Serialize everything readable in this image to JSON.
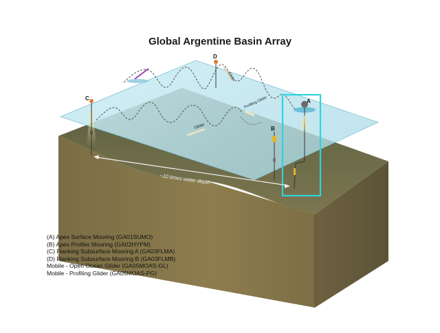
{
  "title": "Global Argentine Basin Array",
  "site_labels": {
    "a": "A",
    "b": "B",
    "c": "C",
    "d": "D"
  },
  "annotations": {
    "distance": "~10 times water depth",
    "glider": "Glider",
    "glider_surface": "Glider",
    "profiling_glider": "Profiling Glider"
  },
  "legend": [
    "(A) Apex Surface Mooring (GA01SUMO)",
    "(B) Apex Profiler Mooring (GA02HYPM)",
    "(C) Flanking Subsurface Mooring A (GA03FLMA)",
    "(D) Flanking Subsurface Mooring B (GA03FLMB)",
    "Mobile - Open Ocean Glider (GA05MOAS-GL)",
    "Mobile - Profiling Glider (GA05MOAS-PG)"
  ],
  "colors": {
    "water_surface": "#bfe3ec",
    "seafloor_top": "#67684a",
    "block_side_front": "#8a7a4c",
    "block_side_right": "#6e6240",
    "highlight_box": "#2fd3dc"
  }
}
